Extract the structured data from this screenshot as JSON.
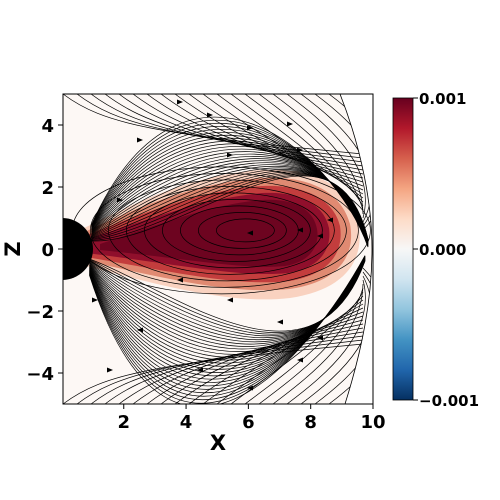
{
  "chart_data": {
    "type": "heatmap",
    "title": "",
    "xlabel": "X",
    "ylabel": "Z",
    "xlim": [
      0.05,
      10.0
    ],
    "ylim": [
      -5.0,
      5.0
    ],
    "xticks": [
      2,
      4,
      6,
      8,
      10
    ],
    "xtick_labels": [
      "2",
      "4",
      "6",
      "8",
      "10"
    ],
    "yticks": [
      4,
      2,
      0,
      -2,
      -4
    ],
    "ytick_labels": [
      "4",
      "2",
      "0",
      "−2",
      "−4"
    ],
    "colormap": "RdBu_r",
    "colorbar": {
      "min": -0.001,
      "max": 0.001,
      "ticks": [
        0.001,
        0.0,
        -0.001
      ],
      "tick_labels": [
        "0.001",
        "0.000",
        "−0.001"
      ],
      "colors": [
        "#053061",
        "#2166ac",
        "#4393c3",
        "#92c5de",
        "#d1e5f0",
        "#f7f7f7",
        "#fddbc7",
        "#f4a582",
        "#d6604d",
        "#b2182b",
        "#67001f"
      ]
    },
    "field_shape": {
      "description": "positive lobe extending from central body outward along equator, peaking near X=6, Z=0.6",
      "lobe_peak": {
        "x": 6.0,
        "z": 0.6,
        "value": 0.001
      }
    },
    "central_body": {
      "center_x": 0.0,
      "center_z": 0.0,
      "radius": 1.0,
      "color": "#000000"
    },
    "outer_boundary_x": 10.0,
    "streamlines": "black field-line streamlines with arrows",
    "grid": false,
    "legend": "none"
  }
}
